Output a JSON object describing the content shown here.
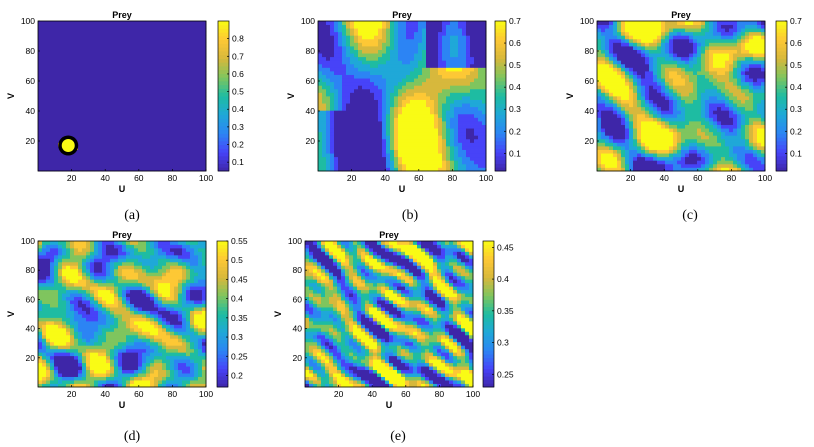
{
  "chart_data": [
    {
      "type": "heatmap",
      "panel": "(a)",
      "title": "Prey",
      "xlabel": "U",
      "ylabel": "V",
      "xlim": [
        0,
        100
      ],
      "ylim": [
        0,
        100
      ],
      "xticks": [
        20,
        40,
        60,
        80,
        100
      ],
      "yticks": [
        20,
        40,
        60,
        80,
        100
      ],
      "colorbar": {
        "range": [
          0.05,
          0.9
        ],
        "ticks": [
          0.1,
          0.2,
          0.3,
          0.4,
          0.5,
          0.6,
          0.7,
          0.8
        ]
      },
      "pattern": {
        "kind": "spot",
        "center": [
          18,
          17
        ],
        "radius": 5,
        "background": 0.05,
        "peak": 0.9
      }
    },
    {
      "type": "heatmap",
      "panel": "(b)",
      "title": "Prey",
      "xlabel": "U",
      "ylabel": "V",
      "xlim": [
        0,
        100
      ],
      "ylim": [
        0,
        100
      ],
      "xticks": [
        20,
        40,
        60,
        80,
        100
      ],
      "yticks": [
        20,
        40,
        60,
        80,
        100
      ],
      "colorbar": {
        "range": [
          0.02,
          0.7
        ],
        "ticks": [
          0.1,
          0.2,
          0.3,
          0.4,
          0.5,
          0.6,
          0.7
        ]
      },
      "pattern": {
        "kind": "irregular",
        "seed": 7,
        "freq": 1.0
      }
    },
    {
      "type": "heatmap",
      "panel": "(c)",
      "title": "Prey",
      "xlabel": "U",
      "ylabel": "V",
      "xlim": [
        0,
        100
      ],
      "ylim": [
        0,
        100
      ],
      "xticks": [
        20,
        40,
        60,
        80,
        100
      ],
      "yticks": [
        20,
        40,
        60,
        80,
        100
      ],
      "colorbar": {
        "range": [
          0.02,
          0.7
        ],
        "ticks": [
          0.1,
          0.2,
          0.3,
          0.4,
          0.5,
          0.6,
          0.7
        ]
      },
      "pattern": {
        "kind": "irregular",
        "seed": 13,
        "freq": 1.6
      }
    },
    {
      "type": "heatmap",
      "panel": "(d)",
      "title": "Prey",
      "xlabel": "U",
      "ylabel": "V",
      "xlim": [
        0,
        100
      ],
      "ylim": [
        0,
        100
      ],
      "xticks": [
        20,
        40,
        60,
        80,
        100
      ],
      "yticks": [
        20,
        40,
        60,
        80,
        100
      ],
      "colorbar": {
        "range": [
          0.17,
          0.55
        ],
        "ticks": [
          0.2,
          0.25,
          0.3,
          0.35,
          0.4,
          0.45,
          0.5,
          0.55
        ]
      },
      "pattern": {
        "kind": "spots",
        "seed": 21,
        "freq": 2.2
      }
    },
    {
      "type": "heatmap",
      "panel": "(e)",
      "title": "Prey",
      "xlabel": "U",
      "ylabel": "V",
      "xlim": [
        0,
        100
      ],
      "ylim": [
        0,
        100
      ],
      "xticks": [
        20,
        40,
        60,
        80,
        100
      ],
      "yticks": [
        20,
        40,
        60,
        80,
        100
      ],
      "colorbar": {
        "range": [
          0.23,
          0.46
        ],
        "ticks": [
          0.25,
          0.3,
          0.35,
          0.4,
          0.45
        ]
      },
      "pattern": {
        "kind": "stripes",
        "seed": 33,
        "freq": 3.2
      }
    }
  ],
  "colormap": [
    "#3e26a8",
    "#4743f8",
    "#2c84f4",
    "#1fa8d8",
    "#1ebca2",
    "#7fc55e",
    "#d7b83c",
    "#fdc835",
    "#f9fb15"
  ]
}
